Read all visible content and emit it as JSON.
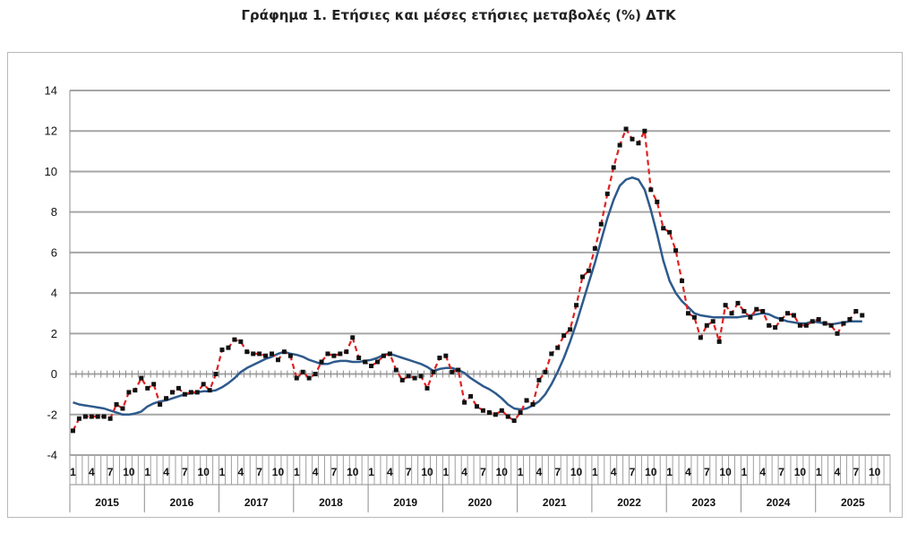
{
  "chart_data": {
    "type": "line",
    "title": "Γράφημα 1. Ετήσιες και μέσες ετήσιες μεταβολές (%) ΔΤΚ",
    "ylim": [
      -4,
      14
    ],
    "yticks": [
      -4,
      -2,
      0,
      2,
      4,
      6,
      8,
      10,
      12,
      14
    ],
    "month_tick_labels": [
      "1",
      "4",
      "7",
      "10"
    ],
    "years": [
      "2015",
      "2016",
      "2017",
      "2018",
      "2019",
      "2020",
      "2021",
      "2022",
      "2023",
      "2024",
      "2025"
    ],
    "grid": true,
    "colors": {
      "annual": "#e02020",
      "average": "#2e5a8c",
      "marker": "#111111",
      "grid": "#a6a6a6"
    },
    "series": [
      {
        "style": "dashed-with-markers",
        "values": [
          -2.8,
          -2.2,
          -2.1,
          -2.1,
          -2.1,
          -2.1,
          -2.2,
          -1.5,
          -1.7,
          -0.9,
          -0.8,
          -0.2,
          -0.7,
          -0.5,
          -1.5,
          -1.2,
          -0.9,
          -0.7,
          -1.0,
          -0.9,
          -0.9,
          -0.5,
          -0.8,
          0.0,
          1.2,
          1.3,
          1.7,
          1.6,
          1.1,
          1.0,
          1.0,
          0.9,
          1.0,
          0.7,
          1.1,
          0.9,
          -0.2,
          0.1,
          -0.2,
          0.0,
          0.6,
          1.0,
          0.9,
          1.0,
          1.1,
          1.8,
          0.8,
          0.6,
          0.4,
          0.6,
          0.9,
          1.0,
          0.2,
          -0.3,
          -0.1,
          -0.2,
          -0.1,
          -0.7,
          0.1,
          0.8,
          0.9,
          0.1,
          0.2,
          -1.4,
          -1.1,
          -1.6,
          -1.8,
          -1.9,
          -2.0,
          -1.8,
          -2.1,
          -2.3,
          -1.9,
          -1.3,
          -1.5,
          -0.3,
          0.1,
          1.0,
          1.3,
          1.9,
          2.2,
          3.4,
          4.8,
          5.1,
          6.2,
          7.4,
          8.9,
          10.2,
          11.3,
          12.1,
          11.6,
          11.4,
          12.0,
          9.1,
          8.5,
          7.2,
          7.0,
          6.1,
          4.6,
          3.0,
          2.8,
          1.8,
          2.4,
          2.6,
          1.6,
          3.4,
          3.0,
          3.5,
          3.1,
          2.8,
          3.2,
          3.1,
          2.4,
          2.3,
          2.7,
          3.0,
          2.9,
          2.4,
          2.4,
          2.6,
          2.7,
          2.5,
          2.4,
          2.0,
          2.5,
          2.7,
          3.1,
          2.9
        ]
      },
      {
        "style": "solid",
        "values": [
          -1.4,
          -1.5,
          -1.55,
          -1.6,
          -1.65,
          -1.7,
          -1.8,
          -1.9,
          -2.0,
          -2.0,
          -1.95,
          -1.85,
          -1.6,
          -1.45,
          -1.35,
          -1.3,
          -1.2,
          -1.1,
          -1.0,
          -0.95,
          -0.9,
          -0.85,
          -0.85,
          -0.8,
          -0.65,
          -0.45,
          -0.2,
          0.1,
          0.3,
          0.45,
          0.6,
          0.75,
          0.85,
          1.0,
          1.1,
          1.0,
          0.95,
          0.85,
          0.7,
          0.6,
          0.5,
          0.5,
          0.6,
          0.65,
          0.65,
          0.6,
          0.6,
          0.65,
          0.7,
          0.8,
          0.95,
          1.0,
          0.9,
          0.8,
          0.7,
          0.6,
          0.5,
          0.35,
          0.15,
          0.25,
          0.3,
          0.3,
          0.2,
          0.05,
          -0.2,
          -0.4,
          -0.6,
          -0.75,
          -0.95,
          -1.2,
          -1.5,
          -1.7,
          -1.75,
          -1.7,
          -1.55,
          -1.35,
          -1.0,
          -0.5,
          0.1,
          0.8,
          1.6,
          2.5,
          3.5,
          4.5,
          5.5,
          6.6,
          7.7,
          8.6,
          9.3,
          9.6,
          9.7,
          9.6,
          9.1,
          8.1,
          6.9,
          5.6,
          4.6,
          4.0,
          3.6,
          3.3,
          3.0,
          2.9,
          2.85,
          2.8,
          2.8,
          2.8,
          2.8,
          2.8,
          2.85,
          2.9,
          2.95,
          3.0,
          2.95,
          2.8,
          2.7,
          2.6,
          2.55,
          2.5,
          2.5,
          2.6,
          2.55,
          2.5,
          2.45,
          2.5,
          2.55,
          2.6,
          2.6,
          2.6
        ]
      }
    ]
  }
}
